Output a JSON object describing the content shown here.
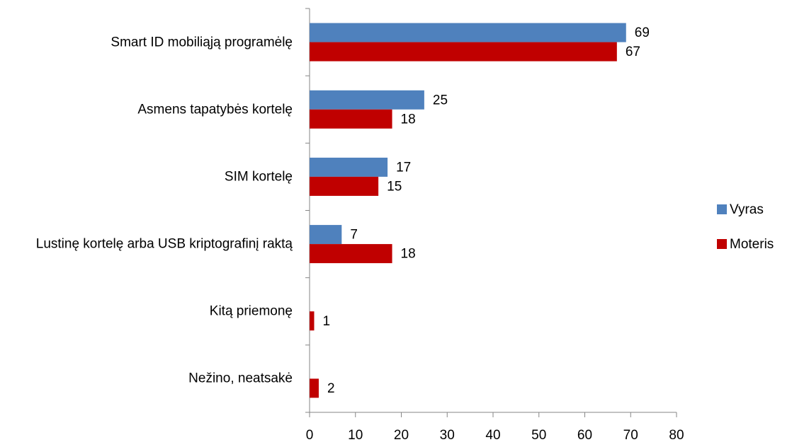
{
  "chart_data": {
    "type": "bar",
    "orientation": "horizontal",
    "categories": [
      "Smart ID mobiliąją programėlę",
      "Asmens tapatybės kortelę",
      "SIM kortelę",
      "Lustinę kortelę arba USB kriptografinį raktą",
      "Kitą priemonę",
      "Nežino, neatsakė"
    ],
    "series": [
      {
        "name": "Vyras",
        "color": "#4f81bd",
        "values": [
          69,
          25,
          17,
          7,
          null,
          null
        ]
      },
      {
        "name": "Moteris",
        "color": "#c00000",
        "values": [
          67,
          18,
          15,
          18,
          1,
          2
        ]
      }
    ],
    "xlim": [
      0,
      80
    ],
    "xticks": [
      0,
      10,
      20,
      30,
      40,
      50,
      60,
      70,
      80
    ],
    "legend": "right"
  }
}
